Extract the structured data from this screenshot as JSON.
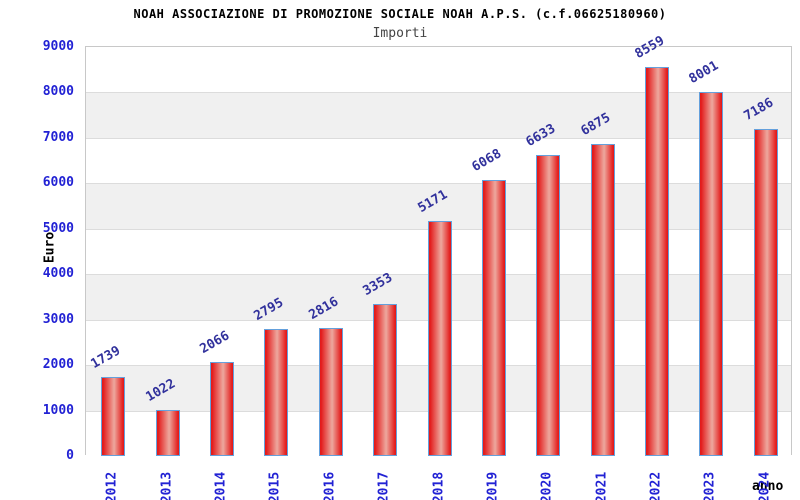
{
  "chart_data": {
    "type": "bar",
    "title": "NOAH ASSOCIAZIONE DI PROMOZIONE SOCIALE NOAH A.P.S. (c.f.06625180960)",
    "subtitle": "Importi",
    "xlabel": "anno",
    "ylabel": "Euro",
    "categories": [
      "2012",
      "2013",
      "2014",
      "2015",
      "2016",
      "2017",
      "2018",
      "2019",
      "2020",
      "2021",
      "2022",
      "2023",
      "2024"
    ],
    "values": [
      1739,
      1022,
      2066,
      2795,
      2816,
      3353,
      5171,
      6068,
      6633,
      6875,
      8559,
      8001,
      7186
    ],
    "ylim": [
      0,
      9000
    ],
    "ytick_step": 1000,
    "grid": "horizontal gridlines with alternating background bands",
    "legend": "none"
  },
  "colors": {
    "bar_edge": "#e31b1b",
    "bar_center": "#eda89e",
    "bar_border": "#64a0dc",
    "band_alt": "#f0f0f0",
    "band_base": "#ffffff",
    "grid_line": "#dcdcdc",
    "plot_border": "#c8c8c8",
    "tick_text": "#2222d4",
    "value_text": "#31319c",
    "title_text": "#000000",
    "subtitle_text": "#444444"
  }
}
